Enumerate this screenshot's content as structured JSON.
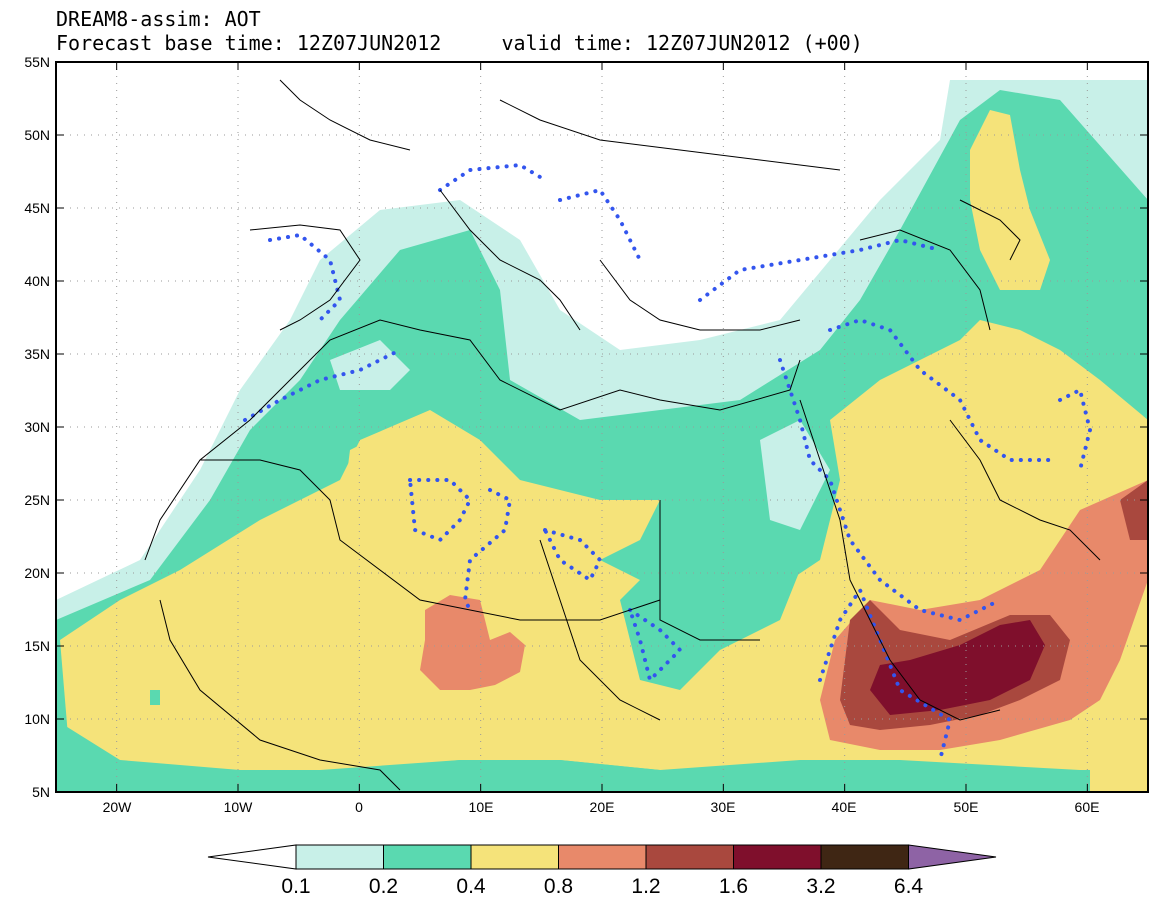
{
  "title": {
    "line1": "DREAM8-assim: AOT",
    "line2": "Forecast base time: 12Z07JUN2012     valid time: 12Z07JUN2012 (+00)"
  },
  "map": {
    "lon_range": [
      -25,
      65
    ],
    "lat_range": [
      5,
      55
    ],
    "lat_ticks": [
      "55N",
      "50N",
      "45N",
      "40N",
      "35N",
      "30N",
      "25N",
      "20N",
      "15N",
      "10N",
      "5N"
    ],
    "lon_ticks": [
      "20W",
      "10W",
      "0",
      "10E",
      "20E",
      "30E",
      "40E",
      "50E",
      "60E"
    ],
    "grid": "dotted",
    "contour_dotted_color": "#3355ee"
  },
  "colorbar": {
    "labels": [
      "0.1",
      "0.2",
      "0.4",
      "0.8",
      "1.2",
      "1.6",
      "3.2",
      "6.4"
    ],
    "colors": [
      "#ffffff",
      "#c8f0e8",
      "#5ad9b0",
      "#f5e37a",
      "#e8896a",
      "#a9483e",
      "#7f0f2c",
      "#3f2614",
      "#8e63a5"
    ]
  }
}
